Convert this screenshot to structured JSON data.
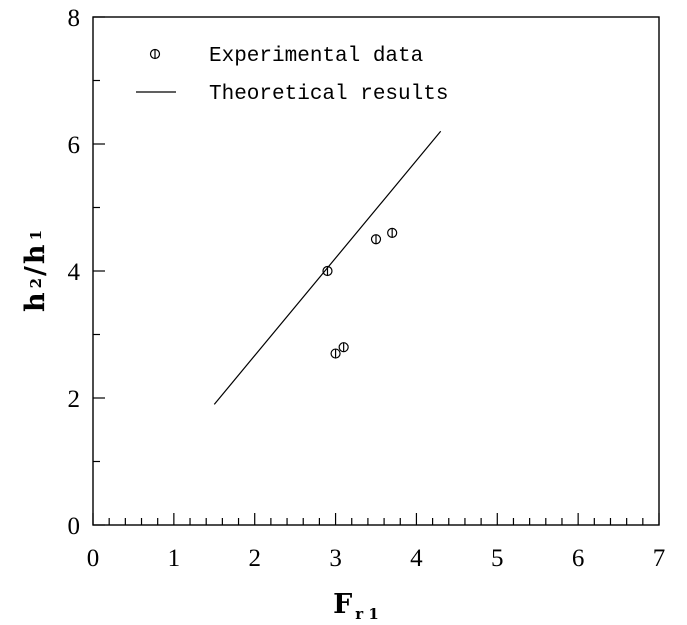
{
  "chart_data": {
    "type": "scatter",
    "xlabel": {
      "base": "F",
      "sub": "r 1"
    },
    "ylabel": {
      "num_base": "h",
      "num_sub": "2",
      "slash": "/",
      "den_base": "h",
      "den_sub": "1"
    },
    "xlim": [
      0,
      7
    ],
    "ylim": [
      0,
      8
    ],
    "x_ticks": [
      0,
      1,
      2,
      3,
      4,
      5,
      6,
      7
    ],
    "y_ticks": [
      0,
      2,
      4,
      6,
      8
    ],
    "x_minor_step": 0.2,
    "y_minor_step": 1,
    "grid": false,
    "legend_position": "top-left",
    "series": [
      {
        "name": "Experimental data",
        "kind": "scatter",
        "marker": "circle-with-errorbar",
        "points": [
          {
            "x": 2.9,
            "y": 4.0
          },
          {
            "x": 3.0,
            "y": 2.7
          },
          {
            "x": 3.1,
            "y": 2.8
          },
          {
            "x": 3.5,
            "y": 4.5
          },
          {
            "x": 3.7,
            "y": 4.6
          }
        ]
      },
      {
        "name": "Theoretical results",
        "kind": "line",
        "points": [
          {
            "x": 1.5,
            "y": 1.9
          },
          {
            "x": 4.3,
            "y": 6.2
          }
        ]
      }
    ]
  }
}
